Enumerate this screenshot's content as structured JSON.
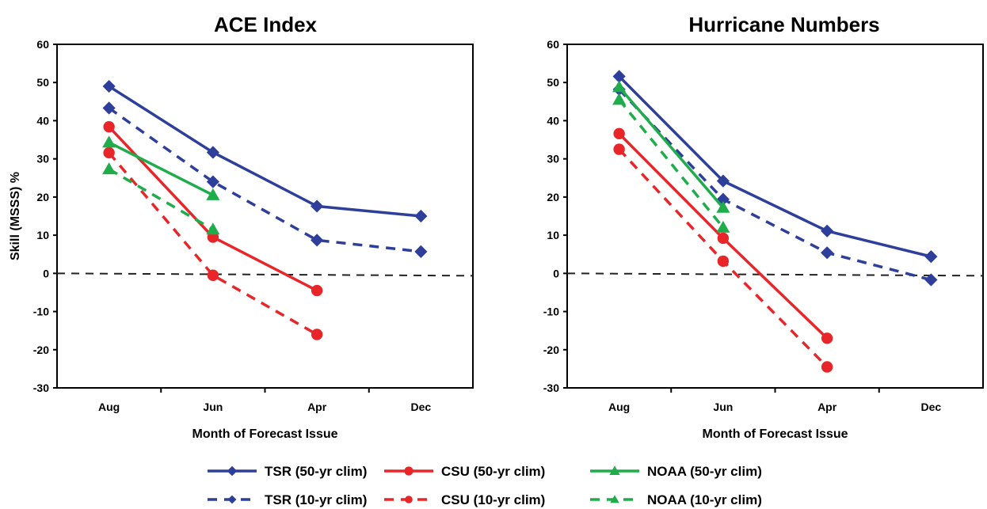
{
  "colors": {
    "TSR": "#2e3f9b",
    "CSU": "#e8262a",
    "NOAA": "#1fad4b"
  },
  "chart_data": [
    {
      "type": "line",
      "title": "ACE Index",
      "xlabel": "Month of Forecast Issue",
      "ylabel": "Skill (MSSS) %",
      "categories": [
        "Aug",
        "Jun",
        "Apr",
        "Dec"
      ],
      "ylim": [
        -30,
        60
      ],
      "yticks": [
        "60",
        "50",
        "40",
        "30",
        "20",
        "10",
        "0",
        "-10",
        "-20",
        "-30"
      ],
      "reference_line": 0,
      "series": [
        {
          "name": "TSR (50-yr clim)",
          "group": "TSR",
          "dashed": false,
          "marker": "diamond",
          "values": [
            49,
            31.7,
            17.6,
            15
          ]
        },
        {
          "name": "TSR (10-yr clim)",
          "group": "TSR",
          "dashed": true,
          "marker": "diamond",
          "values": [
            43.3,
            24,
            8.7,
            5.7
          ]
        },
        {
          "name": "CSU (50-yr clim)",
          "group": "CSU",
          "dashed": false,
          "marker": "circle",
          "values": [
            38.4,
            9.5,
            -4.5,
            null
          ]
        },
        {
          "name": "CSU (10-yr clim)",
          "group": "CSU",
          "dashed": true,
          "marker": "circle",
          "values": [
            31.6,
            -0.5,
            -16,
            null
          ]
        },
        {
          "name": "NOAA (50-yr clim)",
          "group": "NOAA",
          "dashed": false,
          "marker": "triangle",
          "values": [
            34.3,
            20.5,
            null,
            null
          ]
        },
        {
          "name": "NOAA (10-yr clim)",
          "group": "NOAA",
          "dashed": true,
          "marker": "triangle",
          "values": [
            27.3,
            11.5,
            null,
            null
          ]
        }
      ]
    },
    {
      "type": "line",
      "title": "Hurricane Numbers",
      "xlabel": "Month of Forecast Issue",
      "ylabel": "",
      "categories": [
        "Aug",
        "Jun",
        "Apr",
        "Dec"
      ],
      "ylim": [
        -30,
        60
      ],
      "yticks": [
        "60",
        "50",
        "40",
        "30",
        "20",
        "10",
        "0",
        "-10",
        "-20",
        "-30"
      ],
      "reference_line": 0,
      "series": [
        {
          "name": "TSR (50-yr clim)",
          "group": "TSR",
          "dashed": false,
          "marker": "diamond",
          "values": [
            51.6,
            24.2,
            11.1,
            4.4
          ]
        },
        {
          "name": "TSR (10-yr clim)",
          "group": "TSR",
          "dashed": true,
          "marker": "diamond",
          "values": [
            48.2,
            19.4,
            5.4,
            -1.7
          ]
        },
        {
          "name": "CSU (50-yr clim)",
          "group": "CSU",
          "dashed": false,
          "marker": "circle",
          "values": [
            36.6,
            9.2,
            -17,
            null
          ]
        },
        {
          "name": "CSU (10-yr clim)",
          "group": "CSU",
          "dashed": true,
          "marker": "circle",
          "values": [
            32.5,
            3.2,
            -24.5,
            null
          ]
        },
        {
          "name": "NOAA (50-yr clim)",
          "group": "NOAA",
          "dashed": false,
          "marker": "triangle",
          "values": [
            48.8,
            17.2,
            null,
            null
          ]
        },
        {
          "name": "NOAA (10-yr clim)",
          "group": "NOAA",
          "dashed": true,
          "marker": "triangle",
          "values": [
            45.5,
            12,
            null,
            null
          ]
        }
      ]
    }
  ],
  "legend": {
    "placement": "bottom-center",
    "items": [
      {
        "label": "TSR (50-yr clim)",
        "group": "TSR",
        "dashed": false,
        "marker": "diamond"
      },
      {
        "label": "CSU (50-yr clim)",
        "group": "CSU",
        "dashed": false,
        "marker": "circle"
      },
      {
        "label": "NOAA (50-yr clim)",
        "group": "NOAA",
        "dashed": false,
        "marker": "triangle"
      },
      {
        "label": "TSR (10-yr clim)",
        "group": "TSR",
        "dashed": true,
        "marker": "diamond"
      },
      {
        "label": "CSU (10-yr clim)",
        "group": "CSU",
        "dashed": true,
        "marker": "circle"
      },
      {
        "label": "NOAA (10-yr clim)",
        "group": "NOAA",
        "dashed": true,
        "marker": "triangle"
      }
    ]
  }
}
